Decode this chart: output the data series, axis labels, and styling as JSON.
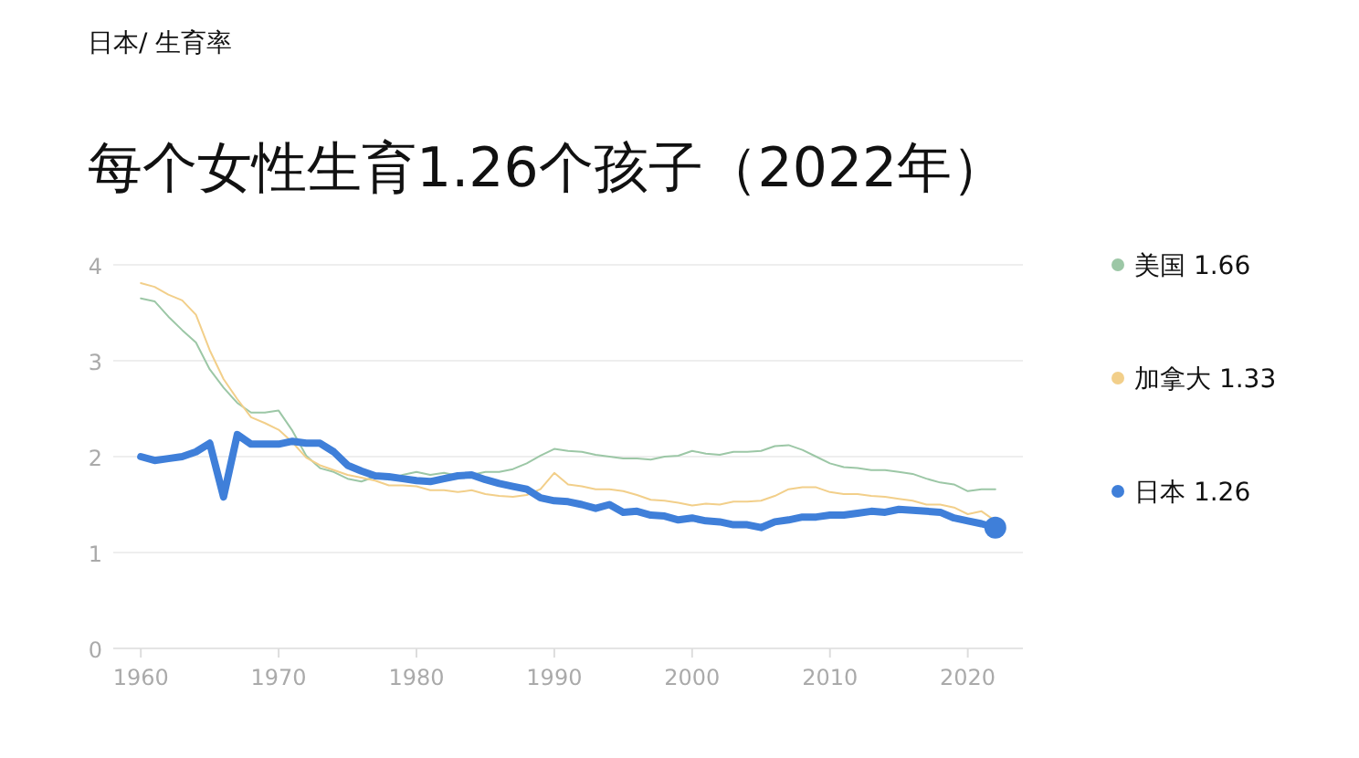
{
  "chart_data": {
    "type": "line",
    "subtitle": "日本/ 生育率",
    "title": "每个女性生育1.26个孩子（2022年）",
    "x": [
      1960,
      1961,
      1962,
      1963,
      1964,
      1965,
      1966,
      1967,
      1968,
      1969,
      1970,
      1971,
      1972,
      1973,
      1974,
      1975,
      1976,
      1977,
      1978,
      1979,
      1980,
      1981,
      1982,
      1983,
      1984,
      1985,
      1986,
      1987,
      1988,
      1989,
      1990,
      1991,
      1992,
      1993,
      1994,
      1995,
      1996,
      1997,
      1998,
      1999,
      2000,
      2001,
      2002,
      2003,
      2004,
      2005,
      2006,
      2007,
      2008,
      2009,
      2010,
      2011,
      2012,
      2013,
      2014,
      2015,
      2016,
      2017,
      2018,
      2019,
      2020,
      2021,
      2022
    ],
    "series": [
      {
        "name": "美国 1.66",
        "color": "#9cc7a6",
        "values": [
          3.65,
          3.62,
          3.46,
          3.32,
          3.19,
          2.91,
          2.72,
          2.56,
          2.46,
          2.46,
          2.48,
          2.27,
          2.01,
          1.88,
          1.84,
          1.77,
          1.74,
          1.79,
          1.76,
          1.81,
          1.84,
          1.81,
          1.83,
          1.8,
          1.81,
          1.84,
          1.84,
          1.87,
          1.93,
          2.01,
          2.08,
          2.06,
          2.05,
          2.02,
          2.0,
          1.98,
          1.98,
          1.97,
          2.0,
          2.01,
          2.06,
          2.03,
          2.02,
          2.05,
          2.05,
          2.06,
          2.11,
          2.12,
          2.07,
          2.0,
          1.93,
          1.89,
          1.88,
          1.86,
          1.86,
          1.84,
          1.82,
          1.77,
          1.73,
          1.71,
          1.64,
          1.66,
          1.66
        ]
      },
      {
        "name": "加拿大 1.33",
        "color": "#f2cf8a",
        "values": [
          3.81,
          3.77,
          3.69,
          3.63,
          3.48,
          3.11,
          2.81,
          2.6,
          2.41,
          2.35,
          2.28,
          2.15,
          1.99,
          1.91,
          1.86,
          1.81,
          1.78,
          1.75,
          1.7,
          1.7,
          1.69,
          1.65,
          1.65,
          1.63,
          1.65,
          1.61,
          1.59,
          1.58,
          1.6,
          1.66,
          1.83,
          1.71,
          1.69,
          1.66,
          1.66,
          1.64,
          1.6,
          1.55,
          1.54,
          1.52,
          1.49,
          1.51,
          1.5,
          1.53,
          1.53,
          1.54,
          1.59,
          1.66,
          1.68,
          1.68,
          1.63,
          1.61,
          1.61,
          1.59,
          1.58,
          1.56,
          1.54,
          1.5,
          1.5,
          1.47,
          1.4,
          1.43,
          1.33
        ]
      },
      {
        "name": "日本 1.26",
        "color": "#3f7fd9",
        "values": [
          2.0,
          1.96,
          1.98,
          2.0,
          2.05,
          2.14,
          1.58,
          2.23,
          2.13,
          2.13,
          2.13,
          2.16,
          2.14,
          2.14,
          2.05,
          1.91,
          1.85,
          1.8,
          1.79,
          1.77,
          1.75,
          1.74,
          1.77,
          1.8,
          1.81,
          1.76,
          1.72,
          1.69,
          1.66,
          1.57,
          1.54,
          1.53,
          1.5,
          1.46,
          1.5,
          1.42,
          1.43,
          1.39,
          1.38,
          1.34,
          1.36,
          1.33,
          1.32,
          1.29,
          1.29,
          1.26,
          1.32,
          1.34,
          1.37,
          1.37,
          1.39,
          1.39,
          1.41,
          1.43,
          1.42,
          1.45,
          1.44,
          1.43,
          1.42,
          1.36,
          1.33,
          1.3,
          1.26
        ]
      },
      {
        "type": "scatter",
        "marker": "circle",
        "color": "#3f7fd9",
        "x": [
          2022
        ],
        "values": [
          1.26
        ]
      }
    ],
    "xlim": [
      1958,
      2024
    ],
    "xticks": [
      1960,
      1970,
      1980,
      1990,
      2000,
      2010,
      2020
    ],
    "ylim": [
      0,
      4
    ],
    "yticks": [
      0,
      1,
      2,
      3,
      4
    ],
    "grid": "y",
    "legend": "right"
  }
}
